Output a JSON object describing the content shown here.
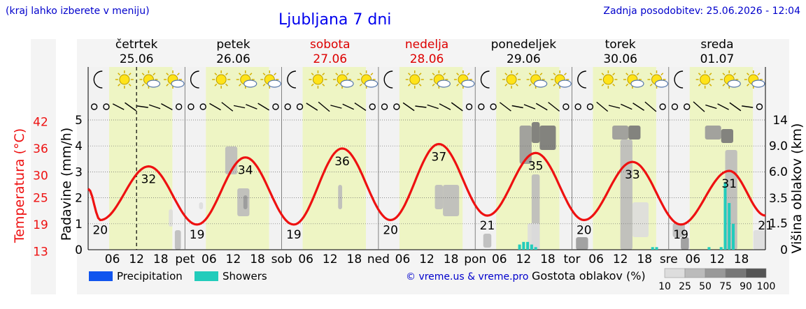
{
  "header": {
    "menu_hint": "(kraj lahko izberete v meniju)",
    "title": "Ljubljana 7 dni",
    "last_update": "Zadnja posodobitev: 25.06.2026 - 12:04"
  },
  "colors": {
    "temperature": "#ee1111",
    "precipitation": "#1155ee",
    "showers": "#22ccbb",
    "daylight": "#eef5c4",
    "night": "#f2f2f2",
    "weekend": "#dd0000",
    "cloud_scale": [
      "#dddddd",
      "#bbbbbb",
      "#999999",
      "#777777",
      "#555555"
    ]
  },
  "chart_data": {
    "type": "line",
    "title": "Ljubljana 7 dni",
    "days": [
      {
        "name": "četrtek",
        "date": "25.06",
        "weekend": false
      },
      {
        "name": "petek",
        "date": "26.06",
        "weekend": false
      },
      {
        "name": "sobota",
        "date": "27.06",
        "weekend": true
      },
      {
        "name": "nedelja",
        "date": "28.06",
        "weekend": true
      },
      {
        "name": "ponedeljek",
        "date": "29.06",
        "weekend": false
      },
      {
        "name": "torek",
        "date": "30.06",
        "weekend": false
      },
      {
        "name": "sreda",
        "date": "01.07",
        "weekend": false
      }
    ],
    "x_tick_labels": [
      "06",
      "12",
      "18"
    ],
    "day_abbreviations": [
      "pet",
      "sob",
      "ned",
      "pon",
      "tor",
      "sre"
    ],
    "left_axis_temperature": {
      "label": "Temperatura (°C)",
      "ticks": [
        13,
        19,
        25,
        30,
        36,
        42
      ]
    },
    "left_axis_precipitation": {
      "label": "Padavine (mm/h)",
      "ticks": [
        0,
        1,
        2,
        3,
        4,
        5
      ],
      "ylim": [
        0,
        5
      ]
    },
    "right_axis": {
      "label": "Višina oblakov (km)",
      "ticks": [
        "0",
        "1.5",
        "3.5",
        "6.0",
        "9.0",
        "14"
      ]
    },
    "temperature_extremes": [
      {
        "day": 0,
        "hour": 3,
        "value": 20,
        "type": "min"
      },
      {
        "day": 0,
        "hour": 15,
        "value": 32,
        "type": "max"
      },
      {
        "day": 1,
        "hour": 3,
        "value": 19,
        "type": "min"
      },
      {
        "day": 1,
        "hour": 15,
        "value": 34,
        "type": "max"
      },
      {
        "day": 2,
        "hour": 3,
        "value": 19,
        "type": "min"
      },
      {
        "day": 2,
        "hour": 15,
        "value": 36,
        "type": "max"
      },
      {
        "day": 3,
        "hour": 3,
        "value": 20,
        "type": "min"
      },
      {
        "day": 3,
        "hour": 15,
        "value": 37,
        "type": "max"
      },
      {
        "day": 4,
        "hour": 3,
        "value": 21,
        "type": "min"
      },
      {
        "day": 4,
        "hour": 15,
        "value": 35,
        "type": "max"
      },
      {
        "day": 5,
        "hour": 3,
        "value": 20,
        "type": "min"
      },
      {
        "day": 5,
        "hour": 15,
        "value": 33,
        "type": "max"
      },
      {
        "day": 6,
        "hour": 3,
        "value": 19,
        "type": "min"
      },
      {
        "day": 6,
        "hour": 15,
        "value": 31,
        "type": "max"
      },
      {
        "day": 6,
        "hour": 24,
        "value": 21,
        "type": "min"
      }
    ],
    "showers": [
      {
        "day": 4,
        "hour": 11,
        "value": 0.2
      },
      {
        "day": 4,
        "hour": 12,
        "value": 0.3
      },
      {
        "day": 4,
        "hour": 13,
        "value": 0.3
      },
      {
        "day": 4,
        "hour": 14,
        "value": 0.2
      },
      {
        "day": 4,
        "hour": 15,
        "value": 0.1
      },
      {
        "day": 5,
        "hour": 20,
        "value": 0.1
      },
      {
        "day": 5,
        "hour": 21,
        "value": 0.1
      },
      {
        "day": 6,
        "hour": 10,
        "value": 0.1
      },
      {
        "day": 6,
        "hour": 13,
        "value": 0.1
      },
      {
        "day": 6,
        "hour": 14,
        "value": 2.6
      },
      {
        "day": 6,
        "hour": 15,
        "value": 1.8
      },
      {
        "day": 6,
        "hour": 16,
        "value": 1.0
      }
    ],
    "legend": [
      {
        "label": "Precipitation",
        "color": "#1155ee"
      },
      {
        "label": "Showers",
        "color": "#22ccbb"
      }
    ],
    "cloud_density": {
      "label": "Gostota oblakov (%)",
      "ticks": [
        "10",
        "25",
        "50",
        "75",
        "90",
        "100"
      ]
    },
    "credit": "© vreme.us & vreme.pro"
  }
}
